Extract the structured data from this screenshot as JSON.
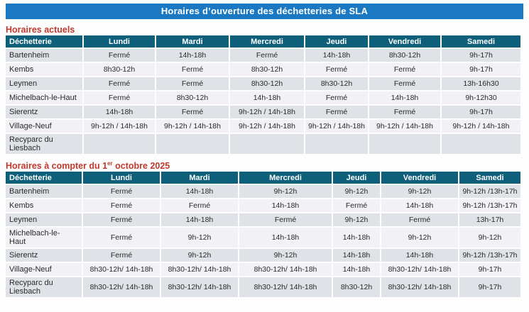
{
  "document_title": "Horaires d’ouverture des déchetteries de SLA",
  "colors": {
    "title_bar_blue": "#1a79c2",
    "table_header_teal": "#0e5f79",
    "row_gray": "#dfe3e8",
    "row_light": "#f2f1f6",
    "heading_red": "#c2382c",
    "header_text": "#ffffff",
    "body_text": "#2a2a2a"
  },
  "sections": [
    {
      "heading_parts": {
        "before": "Horaires actuels",
        "sup": "",
        "after": ""
      },
      "columns": [
        "Déchetterie",
        "Lundi",
        "Mardi",
        "Mercredi",
        "Jeudi",
        "Vendredi",
        "Samedi"
      ],
      "rows": [
        {
          "name": "Bartenheim",
          "cells": [
            "Fermé",
            "14h-18h",
            "Fermé",
            "14h-18h",
            "8h30-12h",
            "9h-17h"
          ]
        },
        {
          "name": "Kembs",
          "cells": [
            "8h30-12h",
            "Fermé",
            "8h30-12h",
            "Fermé",
            "Fermé",
            "9h-17h"
          ]
        },
        {
          "name": "Leymen",
          "cells": [
            "Fermé",
            "Fermé",
            "8h30-12h",
            "8h30-12h",
            "Fermé",
            "13h-16h30"
          ]
        },
        {
          "name": "Michelbach-le-Haut",
          "cells": [
            "Fermé",
            "8h30-12h",
            "14h-18h",
            "Fermé",
            "14h-18h",
            "9h-12h30"
          ]
        },
        {
          "name": "Sierentz",
          "cells": [
            "14h-18h",
            "Fermé",
            "9h-12h / 14h-18h",
            "Fermé",
            "Fermé",
            "9h-17h"
          ]
        },
        {
          "name": "Village-Neuf",
          "cells": [
            "9h-12h / 14h-18h",
            "9h-12h / 14h-18h",
            "9h-12h / 14h-18h",
            "9h-12h / 14h-18h",
            "9h-12h / 14h-18h",
            "9h-12h / 14h-18h"
          ]
        },
        {
          "name": "Recyparc du\nLiesbach",
          "cells": [
            "",
            "",
            "",
            "",
            "",
            ""
          ]
        }
      ]
    },
    {
      "heading_parts": {
        "before": "Horaires à compter du 1",
        "sup": "er",
        "after": " octobre 2025"
      },
      "columns": [
        "Déchetterie",
        "Lundi",
        "Mardi",
        "Mercredi",
        "Jeudi",
        "Vendredi",
        "Samedi"
      ],
      "rows": [
        {
          "name": "Bartenheim",
          "cells": [
            "Fermé",
            "14h-18h",
            "9h-12h",
            "9h-12h",
            "9h-12h",
            "9h-12h /13h-17h"
          ]
        },
        {
          "name": "Kembs",
          "cells": [
            "Fermé",
            "Fermé",
            "14h-18h",
            "Fermé",
            "14h-18h",
            "9h-12h /13h-17h"
          ]
        },
        {
          "name": "Leymen",
          "cells": [
            "Fermé",
            "14h-18h",
            "Fermé",
            "9h-12h",
            "Fermé",
            "13h-17h"
          ]
        },
        {
          "name": "Michelbach-le-\nHaut",
          "cells": [
            "Fermé",
            "9h-12h",
            "14h-18h",
            "14h-18h",
            "9h-12h",
            "9h-12h"
          ]
        },
        {
          "name": "Sierentz",
          "cells": [
            "Fermé",
            "9h-12h",
            "9h-12h",
            "14h-18h",
            "14h-18h",
            "9h-12h /13h-17h"
          ]
        },
        {
          "name": "Village-Neuf",
          "cells": [
            "8h30-12h/ 14h-18h",
            "8h30-12h/ 14h-18h",
            "8h30-12h/ 14h-18h",
            "14h-18h",
            "8h30-12h/ 14h-18h",
            "9h-17h"
          ]
        },
        {
          "name": "Recyparc du\nLiesbach",
          "cells": [
            "8h30-12h/ 14h-18h",
            "8h30-12h/ 14h-18h",
            "8h30-12h/ 14h-18h",
            "8h30-12h",
            "8h30-12h/ 14h-18h",
            "9h-17h"
          ]
        }
      ]
    }
  ]
}
